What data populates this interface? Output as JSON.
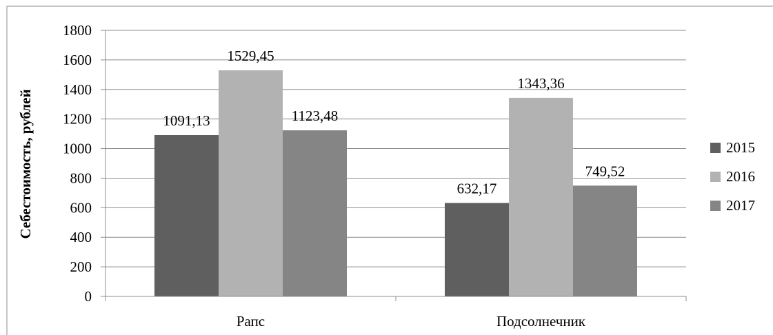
{
  "chart_data": {
    "type": "bar",
    "title": "",
    "xlabel": "",
    "ylabel": "Себестоимость, рублей",
    "categories": [
      "Рапс",
      "Подсолнечник"
    ],
    "series": [
      {
        "name": "2015",
        "values": [
          1091.13,
          632.17
        ],
        "labels": [
          "1091,13",
          "632,17"
        ],
        "color": "#5f5f5f"
      },
      {
        "name": "2016",
        "values": [
          1529.45,
          1343.36
        ],
        "labels": [
          "1529,45",
          "1343,36"
        ],
        "color": "#b2b2b2"
      },
      {
        "name": "2017",
        "values": [
          1123.48,
          749.52
        ],
        "labels": [
          "1123,48",
          "749,52"
        ],
        "color": "#858585"
      }
    ],
    "ylim": [
      0,
      1800
    ],
    "yticks": [
      0,
      200,
      400,
      600,
      800,
      1000,
      1200,
      1400,
      1600,
      1800
    ],
    "grid": true,
    "legend_position": "right"
  }
}
